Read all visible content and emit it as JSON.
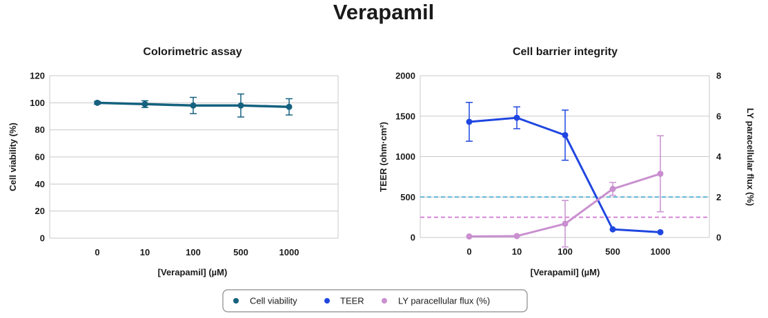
{
  "title": "Verapamil",
  "chart_data": [
    {
      "type": "line",
      "title": "Colorimetric assay",
      "xlabel": "[Verapamil] (µM)",
      "ylabel": "Cell viability (%)",
      "categories": [
        "0",
        "10",
        "100",
        "500",
        "1000"
      ],
      "ylim": [
        0,
        120
      ],
      "yticks": [
        "0",
        "20",
        "40",
        "60",
        "80",
        "100",
        "120"
      ],
      "grid": true,
      "series": [
        {
          "name": "Cell viability",
          "color": "#15617f",
          "values": [
            100,
            99,
            98,
            98,
            97
          ],
          "errors": [
            1,
            2.5,
            6,
            8.5,
            6
          ]
        }
      ]
    },
    {
      "type": "line",
      "title": "Cell barrier integrity",
      "xlabel": "[Verapamil] (µM)",
      "ylabel": "TEER (ohm·cm²)",
      "y2label": "LY paracellular flux (%)",
      "categories": [
        "0",
        "10",
        "100",
        "500",
        "1000"
      ],
      "ylim": [
        0,
        2000
      ],
      "yticks": [
        "0",
        "500",
        "1000",
        "1500",
        "2000"
      ],
      "y2lim": [
        0,
        8
      ],
      "y2ticks": [
        "0",
        "2",
        "4",
        "6",
        "8"
      ],
      "grid": true,
      "series": [
        {
          "name": "TEER",
          "axis": "left",
          "color": "#1f46e0",
          "values": [
            1430,
            1480,
            1265,
            100,
            65
          ],
          "errors": [
            240,
            135,
            310,
            null,
            null
          ]
        },
        {
          "name": "LY paracellular flux (%)",
          "axis": "right",
          "color": "#c98fcf",
          "values": [
            0.05,
            0.07,
            0.68,
            2.4,
            3.15
          ],
          "errors": [
            null,
            null,
            1.15,
            0.32,
            1.88
          ]
        }
      ],
      "reference_lines": [
        {
          "axis": "left",
          "value": 500,
          "color": "#5ab4d6"
        },
        {
          "axis": "right",
          "value": 1,
          "color": "#d585d8"
        }
      ]
    }
  ],
  "legend": {
    "entries": [
      {
        "label": "Cell viability",
        "color": "#15617f"
      },
      {
        "label": "TEER",
        "color": "#1f46e0"
      },
      {
        "label": "LY paracellular flux (%)",
        "color": "#c98fcf"
      }
    ]
  }
}
